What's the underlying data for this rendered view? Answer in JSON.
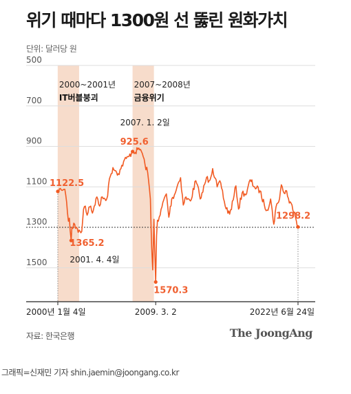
{
  "header": {
    "title": "위기 때마다 1300원 선 뚫린 원화가치",
    "unit": "단위: 달러당 원"
  },
  "footer": {
    "source": "자료: 한국은행",
    "brand": "The JoongAng",
    "credit": "그래픽=신재민 기자 shin.jaemin@joongang.co.kr"
  },
  "colors": {
    "line": "#f15a22",
    "band": "#f7dccb",
    "ref_line": "#333333",
    "grid": "#dddddd"
  },
  "chart_data": {
    "type": "line",
    "title": "위기 때마다 1300원 선 뚫린 원화가치",
    "ylabel": "단위: 달러당 원",
    "y_inverted": true,
    "ylim": [
      500,
      1700
    ],
    "yticks": [
      "500",
      "700",
      "900",
      "1100",
      "1300",
      "1500"
    ],
    "xlim": [
      "2000-01-04",
      "2022-06-24"
    ],
    "xticks": [
      {
        "x": "2000-01-04",
        "label": "2000년 1월 4일"
      },
      {
        "x": "2009-03-02",
        "label": "2009. 3. 2"
      },
      {
        "x": "2022-06-24",
        "label": "2022년 6월 24일"
      }
    ],
    "reference_line": {
      "y": 1300
    },
    "bands": [
      {
        "from": "2000-01-01",
        "to": "2001-12-31",
        "period": "2000~2001년",
        "name": "IT버블붕괴"
      },
      {
        "from": "2007-01-01",
        "to": "2008-12-31",
        "period": "2007~2008년",
        "name": "금융위기"
      }
    ],
    "annotations": [
      {
        "x": "2000-01-04",
        "y": 1122.5,
        "value": "1122.5",
        "date_label": ""
      },
      {
        "x": "2001-04-04",
        "y": 1365.2,
        "value": "1365.2",
        "date_label": "2001. 4. 4일"
      },
      {
        "x": "2007-01-02",
        "y": 925.6,
        "value": "925.6",
        "date_label": "2007. 1. 2일"
      },
      {
        "x": "2009-03-02",
        "y": 1570.3,
        "value": "1570.3",
        "date_label": ""
      },
      {
        "x": "2022-06-24",
        "y": 1298.2,
        "value": "1298.2",
        "date_label": ""
      }
    ],
    "series": [
      {
        "values": [
          [
            "2000-01-04",
            1122.5
          ],
          [
            "2000-02-01",
            1125
          ],
          [
            "2000-03-01",
            1110
          ],
          [
            "2000-04-01",
            1108
          ],
          [
            "2000-05-01",
            1115
          ],
          [
            "2000-06-01",
            1118
          ],
          [
            "2000-07-01",
            1115
          ],
          [
            "2000-08-01",
            1112
          ],
          [
            "2000-09-01",
            1112
          ],
          [
            "2000-10-01",
            1140
          ],
          [
            "2000-11-01",
            1175
          ],
          [
            "2000-12-01",
            1230
          ],
          [
            "2001-01-01",
            1270
          ],
          [
            "2001-02-01",
            1255
          ],
          [
            "2001-03-01",
            1315
          ],
          [
            "2001-04-04",
            1365.2
          ],
          [
            "2001-05-01",
            1300
          ],
          [
            "2001-06-01",
            1305
          ],
          [
            "2001-08-01",
            1285
          ],
          [
            "2001-10-01",
            1300
          ],
          [
            "2001-12-01",
            1325
          ],
          [
            "2002-02-01",
            1320
          ],
          [
            "2002-04-01",
            1320
          ],
          [
            "2002-06-01",
            1210
          ],
          [
            "2002-08-01",
            1195
          ],
          [
            "2002-10-01",
            1240
          ],
          [
            "2002-12-01",
            1200
          ],
          [
            "2003-02-01",
            1195
          ],
          [
            "2003-04-01",
            1230
          ],
          [
            "2003-06-01",
            1195
          ],
          [
            "2003-09-01",
            1150
          ],
          [
            "2003-12-01",
            1195
          ],
          [
            "2004-03-01",
            1150
          ],
          [
            "2004-06-01",
            1160
          ],
          [
            "2004-09-01",
            1145
          ],
          [
            "2004-11-01",
            1060
          ],
          [
            "2005-01-01",
            1035
          ],
          [
            "2005-03-01",
            1005
          ],
          [
            "2005-06-01",
            1020
          ],
          [
            "2005-09-01",
            1035
          ],
          [
            "2005-12-01",
            1010
          ],
          [
            "2006-03-01",
            975
          ],
          [
            "2006-06-01",
            960
          ],
          [
            "2006-09-01",
            950
          ],
          [
            "2006-12-01",
            930
          ],
          [
            "2007-01-02",
            925.6
          ],
          [
            "2007-04-01",
            930
          ],
          [
            "2007-07-01",
            915
          ],
          [
            "2007-10-01",
            915
          ],
          [
            "2007-12-01",
            935
          ],
          [
            "2008-03-01",
            990
          ],
          [
            "2008-06-01",
            1030
          ],
          [
            "2008-09-01",
            1160
          ],
          [
            "2008-10-15",
            1400
          ],
          [
            "2008-11-20",
            1510
          ],
          [
            "2008-12-31",
            1260
          ],
          [
            "2009-01-20",
            1380
          ],
          [
            "2009-03-02",
            1570.3
          ],
          [
            "2009-04-01",
            1340
          ],
          [
            "2009-05-01",
            1265
          ],
          [
            "2009-08-01",
            1240
          ],
          [
            "2009-12-01",
            1165
          ],
          [
            "2010-03-01",
            1135
          ],
          [
            "2010-05-25",
            1250
          ],
          [
            "2010-09-01",
            1160
          ],
          [
            "2010-12-01",
            1140
          ],
          [
            "2011-04-01",
            1085
          ],
          [
            "2011-07-01",
            1055
          ],
          [
            "2011-10-01",
            1190
          ],
          [
            "2011-12-01",
            1155
          ],
          [
            "2012-06-01",
            1170
          ],
          [
            "2012-12-01",
            1070
          ],
          [
            "2013-04-01",
            1135
          ],
          [
            "2013-06-01",
            1155
          ],
          [
            "2013-12-01",
            1055
          ],
          [
            "2014-03-01",
            1070
          ],
          [
            "2014-07-01",
            1010
          ],
          [
            "2014-12-01",
            1100
          ],
          [
            "2015-04-01",
            1080
          ],
          [
            "2015-09-01",
            1195
          ],
          [
            "2016-02-01",
            1235
          ],
          [
            "2016-06-01",
            1165
          ],
          [
            "2016-09-01",
            1095
          ],
          [
            "2016-12-01",
            1210
          ],
          [
            "2017-04-01",
            1130
          ],
          [
            "2017-09-01",
            1135
          ],
          [
            "2018-01-01",
            1065
          ],
          [
            "2018-06-01",
            1100
          ],
          [
            "2018-12-01",
            1120
          ],
          [
            "2019-05-01",
            1190
          ],
          [
            "2019-08-01",
            1215
          ],
          [
            "2019-12-01",
            1160
          ],
          [
            "2020-03-19",
            1285
          ],
          [
            "2020-06-01",
            1200
          ],
          [
            "2020-09-01",
            1175
          ],
          [
            "2020-12-01",
            1090
          ],
          [
            "2021-03-01",
            1130
          ],
          [
            "2021-06-01",
            1120
          ],
          [
            "2021-09-01",
            1180
          ],
          [
            "2021-12-01",
            1190
          ],
          [
            "2022-03-01",
            1225
          ],
          [
            "2022-05-01",
            1270
          ],
          [
            "2022-06-24",
            1298.2
          ]
        ]
      }
    ]
  }
}
